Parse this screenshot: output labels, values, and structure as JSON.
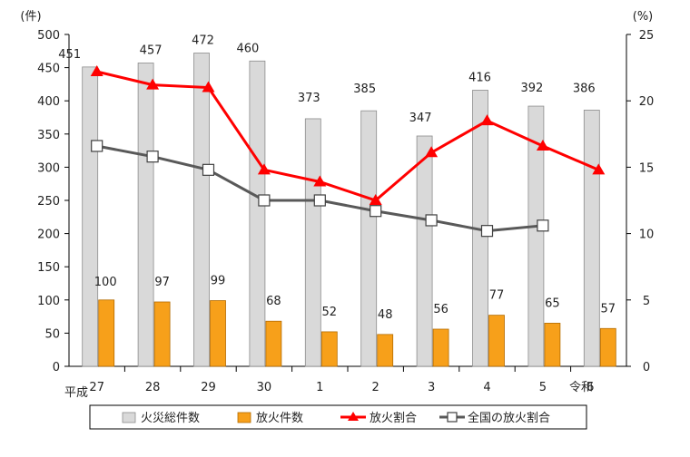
{
  "chart_data": {
    "type": "bar",
    "title": "",
    "categories": [
      "27",
      "28",
      "29",
      "30",
      "1",
      "2",
      "3",
      "4",
      "5",
      "6"
    ],
    "era_labels": [
      {
        "category_index": 0,
        "text": "平成"
      },
      {
        "category_index": 9,
        "text": "令和"
      }
    ],
    "left_axis": {
      "unit": "(件)",
      "ylim": [
        0,
        500
      ],
      "ticks": [
        0,
        50,
        100,
        150,
        200,
        250,
        300,
        350,
        400,
        450,
        500
      ]
    },
    "right_axis": {
      "unit": "(%)",
      "ylim": [
        0,
        25
      ],
      "ticks": [
        0,
        5,
        10,
        15,
        20,
        25
      ]
    },
    "series": [
      {
        "name": "火災総件数",
        "kind": "bar",
        "axis": "left",
        "color": "#d9d9d9",
        "values": [
          451,
          457,
          472,
          460,
          373,
          385,
          347,
          416,
          392,
          386
        ]
      },
      {
        "name": "放火件数",
        "kind": "bar",
        "axis": "left",
        "color": "#f7a01a",
        "values": [
          100,
          97,
          99,
          68,
          52,
          48,
          56,
          77,
          65,
          57
        ]
      },
      {
        "name": "放火割合",
        "kind": "line",
        "axis": "right",
        "color": "#ff0000",
        "marker": "triangle",
        "values": [
          22.2,
          21.2,
          21.0,
          14.8,
          13.9,
          12.5,
          16.1,
          18.5,
          16.6,
          14.8
        ]
      },
      {
        "name": "全国の放火割合",
        "kind": "line",
        "axis": "right",
        "color": "#595959",
        "marker": "square-open",
        "values": [
          16.6,
          15.8,
          14.8,
          12.5,
          12.5,
          11.7,
          11.0,
          10.2,
          10.6,
          null
        ]
      }
    ],
    "legend_position": "bottom",
    "grid": false
  }
}
